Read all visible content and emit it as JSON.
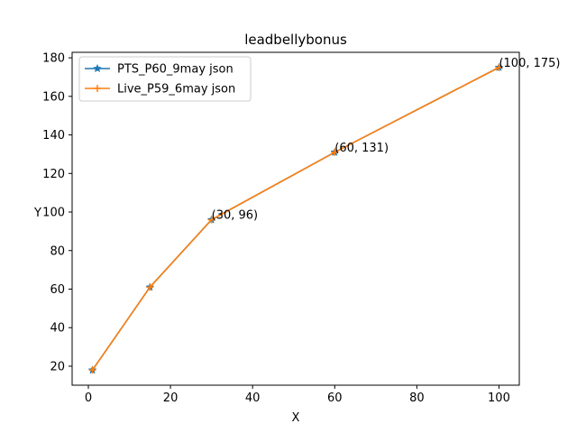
{
  "chart_data": {
    "type": "line",
    "title": "leadbellybonus",
    "xlabel": "X",
    "ylabel": "Y",
    "xlim": [
      -3.95,
      104.95
    ],
    "ylim": [
      10.15,
      182.85
    ],
    "xticks": [
      0,
      20,
      40,
      60,
      80,
      100
    ],
    "yticks": [
      20,
      40,
      60,
      80,
      100,
      120,
      140,
      160,
      180
    ],
    "grid": false,
    "legend_position": "top-left",
    "x": [
      1,
      15,
      30,
      60,
      100
    ],
    "series": [
      {
        "name": "PTS_P60_9may json",
        "values": [
          18,
          61,
          96,
          131,
          175
        ],
        "color": "#1f77b4",
        "marker": "star"
      },
      {
        "name": "Live_P59_6may json",
        "values": [
          18,
          61,
          96,
          131,
          175
        ],
        "color": "#ff7f0e",
        "marker": "plus"
      }
    ],
    "annotations": [
      {
        "x": 30,
        "y": 96,
        "text": "(30, 96)"
      },
      {
        "x": 60,
        "y": 131,
        "text": "(60, 131)"
      },
      {
        "x": 100,
        "y": 175,
        "text": "(100, 175)"
      }
    ]
  }
}
